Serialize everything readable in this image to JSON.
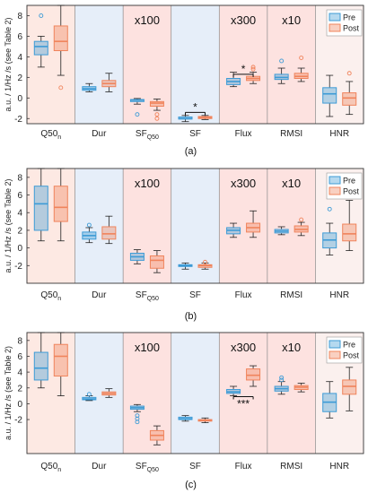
{
  "figure": {
    "ylabel": "a.u. / 1/Hz /s (see Table 2)",
    "legend": {
      "position": "top-right"
    },
    "series_colors": {
      "pre": "#3d9bd6",
      "post": "#f0845c"
    },
    "group_backgrounds": [
      "#fde9e3",
      "#e6eef9",
      "#fde2e0",
      "#e6eef9",
      "#fde2e0",
      "#fde2e0",
      "#fbf0ee"
    ],
    "group_labels": [
      {
        "base": "Q50",
        "sub": "n"
      },
      {
        "base": "Dur",
        "sub": ""
      },
      {
        "base": "SF",
        "sub": "Q50"
      },
      {
        "base": "SF",
        "sub": ""
      },
      {
        "base": "Flux",
        "sub": ""
      },
      {
        "base": "RMSI",
        "sub": ""
      },
      {
        "base": "HNR",
        "sub": ""
      }
    ]
  },
  "chart_data": [
    {
      "type": "box",
      "caption": "(a)",
      "ylim": [
        -2.5,
        9.0
      ],
      "yticks": [
        -2,
        0,
        2,
        4,
        6,
        8
      ],
      "legend": [
        "Pre",
        "Post"
      ],
      "scale_notes": [
        {
          "group": 2,
          "text": "x100"
        },
        {
          "group": 4,
          "text": "x300"
        },
        {
          "group": 5,
          "text": "x10"
        }
      ],
      "significance": [
        {
          "group": 3,
          "text": "*",
          "y": -1.4
        },
        {
          "group": 4,
          "text": "*",
          "y": 2.3
        }
      ],
      "series": [
        {
          "name": "Pre",
          "boxes": [
            {
              "wl": 3.0,
              "q1": 4.2,
              "med": 5.0,
              "q3": 5.5,
              "wh": 6.0,
              "out": [
                8.0
              ]
            },
            {
              "wl": 0.6,
              "q1": 0.75,
              "med": 0.9,
              "q3": 1.1,
              "wh": 1.4,
              "out": []
            },
            {
              "wl": -0.6,
              "q1": -0.35,
              "med": -0.2,
              "q3": -0.15,
              "wh": -0.05,
              "out": [
                -1.6
              ]
            },
            {
              "wl": -2.3,
              "q1": -2.05,
              "med": -2.0,
              "q3": -1.85,
              "wh": -1.7,
              "out": []
            },
            {
              "wl": 1.1,
              "q1": 1.3,
              "med": 1.6,
              "q3": 1.9,
              "wh": 2.5,
              "out": []
            },
            {
              "wl": 1.4,
              "q1": 1.8,
              "med": 2.0,
              "q3": 2.3,
              "wh": 2.9,
              "out": [
                3.6
              ]
            },
            {
              "wl": -1.8,
              "q1": -0.5,
              "med": 0.4,
              "q3": 1.0,
              "wh": 2.2,
              "out": []
            }
          ]
        },
        {
          "name": "Post",
          "boxes": [
            {
              "wl": 2.2,
              "q1": 4.6,
              "med": 5.5,
              "q3": 7.0,
              "wh": 9.0,
              "out": [
                1.0
              ]
            },
            {
              "wl": 0.6,
              "q1": 1.1,
              "med": 1.4,
              "q3": 1.7,
              "wh": 2.4,
              "out": []
            },
            {
              "wl": -1.2,
              "q1": -0.8,
              "med": -0.5,
              "q3": -0.35,
              "wh": -0.1,
              "out": [
                -1.6,
                -2.0
              ]
            },
            {
              "wl": -2.1,
              "q1": -2.0,
              "med": -1.9,
              "q3": -1.8,
              "wh": -1.7,
              "out": []
            },
            {
              "wl": 1.4,
              "q1": 1.7,
              "med": 1.9,
              "q3": 2.1,
              "wh": 2.5,
              "out": [
                2.8,
                3.0
              ]
            },
            {
              "wl": 1.6,
              "q1": 1.9,
              "med": 2.1,
              "q3": 2.4,
              "wh": 2.9,
              "out": [
                3.9
              ]
            },
            {
              "wl": -1.6,
              "q1": -0.7,
              "med": 0.0,
              "q3": 0.5,
              "wh": 1.6,
              "out": [
                2.4
              ]
            }
          ]
        }
      ]
    },
    {
      "type": "box",
      "caption": "(b)",
      "ylim": [
        -4.0,
        9.0
      ],
      "yticks": [
        -2,
        0,
        2,
        4,
        6,
        8
      ],
      "legend": [
        "Pre",
        "Post"
      ],
      "scale_notes": [
        {
          "group": 2,
          "text": "x100"
        },
        {
          "group": 4,
          "text": "x300"
        },
        {
          "group": 5,
          "text": "x10"
        }
      ],
      "significance": [],
      "series": [
        {
          "name": "Pre",
          "boxes": [
            {
              "wl": 0.8,
              "q1": 2.0,
              "med": 5.0,
              "q3": 7.0,
              "wh": 9.0,
              "out": []
            },
            {
              "wl": 0.6,
              "q1": 1.0,
              "med": 1.4,
              "q3": 1.8,
              "wh": 2.3,
              "out": [
                2.6
              ]
            },
            {
              "wl": -1.8,
              "q1": -1.4,
              "med": -1.0,
              "q3": -0.6,
              "wh": -0.2,
              "out": []
            },
            {
              "wl": -2.4,
              "q1": -2.1,
              "med": -2.0,
              "q3": -1.9,
              "wh": -1.7,
              "out": []
            },
            {
              "wl": 1.2,
              "q1": 1.6,
              "med": 2.0,
              "q3": 2.3,
              "wh": 2.8,
              "out": []
            },
            {
              "wl": 1.5,
              "q1": 1.7,
              "med": 1.9,
              "q3": 2.1,
              "wh": 2.4,
              "out": []
            },
            {
              "wl": -0.8,
              "q1": 0.0,
              "med": 0.9,
              "q3": 1.7,
              "wh": 2.8,
              "out": [
                4.4
              ]
            }
          ]
        },
        {
          "name": "Post",
          "boxes": [
            {
              "wl": 0.8,
              "q1": 3.0,
              "med": 4.6,
              "q3": 7.0,
              "wh": 9.0,
              "out": []
            },
            {
              "wl": 0.5,
              "q1": 1.0,
              "med": 1.6,
              "q3": 2.4,
              "wh": 3.6,
              "out": []
            },
            {
              "wl": -2.8,
              "q1": -2.3,
              "med": -1.4,
              "q3": -0.9,
              "wh": -0.3,
              "out": []
            },
            {
              "wl": -2.4,
              "q1": -2.2,
              "med": -2.0,
              "q3": -1.9,
              "wh": -1.7,
              "out": [
                -1.6
              ]
            },
            {
              "wl": 1.2,
              "q1": 1.8,
              "med": 2.3,
              "q3": 2.8,
              "wh": 4.2,
              "out": []
            },
            {
              "wl": 1.4,
              "q1": 1.8,
              "med": 2.1,
              "q3": 2.5,
              "wh": 2.9,
              "out": [
                3.2
              ]
            },
            {
              "wl": -0.3,
              "q1": 0.8,
              "med": 1.6,
              "q3": 2.7,
              "wh": 5.4,
              "out": []
            }
          ]
        }
      ]
    },
    {
      "type": "box",
      "caption": "(c)",
      "ylim": [
        -6.3,
        9.0
      ],
      "yticks": [
        -2,
        0,
        2,
        4,
        6,
        8
      ],
      "legend": [
        "Pre",
        "Post"
      ],
      "scale_notes": [
        {
          "group": 2,
          "text": "x100"
        },
        {
          "group": 4,
          "text": "x300"
        },
        {
          "group": 5,
          "text": "x10"
        }
      ],
      "significance": [
        {
          "group": 4,
          "text": "***",
          "y": 0.9
        }
      ],
      "series": [
        {
          "name": "Pre",
          "boxes": [
            {
              "wl": 2.0,
              "q1": 3.0,
              "med": 4.5,
              "q3": 6.5,
              "wh": 9.0,
              "out": []
            },
            {
              "wl": 0.4,
              "q1": 0.5,
              "med": 0.6,
              "q3": 0.8,
              "wh": 1.0,
              "out": [
                1.2
              ]
            },
            {
              "wl": -1.0,
              "q1": -0.7,
              "med": -0.5,
              "q3": -0.3,
              "wh": -0.1,
              "out": [
                -1.5,
                -1.9,
                -2.3
              ]
            },
            {
              "wl": -2.2,
              "q1": -2.0,
              "med": -1.9,
              "q3": -1.7,
              "wh": -1.5,
              "out": []
            },
            {
              "wl": 1.0,
              "q1": 1.3,
              "med": 1.5,
              "q3": 1.8,
              "wh": 2.2,
              "out": []
            },
            {
              "wl": 1.2,
              "q1": 1.6,
              "med": 1.9,
              "q3": 2.2,
              "wh": 2.8,
              "out": [
                3.0,
                3.3
              ]
            },
            {
              "wl": -1.8,
              "q1": -1.0,
              "med": 0.2,
              "q3": 1.3,
              "wh": 2.8,
              "out": [
                6.0
              ]
            }
          ]
        },
        {
          "name": "Post",
          "boxes": [
            {
              "wl": 1.0,
              "q1": 3.5,
              "med": 6.0,
              "q3": 7.5,
              "wh": 9.0,
              "out": []
            },
            {
              "wl": 0.8,
              "q1": 1.1,
              "med": 1.3,
              "q3": 1.5,
              "wh": 1.9,
              "out": []
            },
            {
              "wl": -5.2,
              "q1": -4.6,
              "med": -4.0,
              "q3": -3.4,
              "wh": -2.8,
              "out": []
            },
            {
              "wl": -2.4,
              "q1": -2.2,
              "med": -2.1,
              "q3": -2.0,
              "wh": -1.8,
              "out": []
            },
            {
              "wl": 2.2,
              "q1": 3.0,
              "med": 3.6,
              "q3": 4.4,
              "wh": 4.8,
              "out": []
            },
            {
              "wl": 1.5,
              "q1": 1.8,
              "med": 2.1,
              "q3": 2.3,
              "wh": 2.6,
              "out": []
            },
            {
              "wl": -0.9,
              "q1": 1.2,
              "med": 2.2,
              "q3": 3.0,
              "wh": 4.6,
              "out": []
            }
          ]
        }
      ]
    }
  ]
}
